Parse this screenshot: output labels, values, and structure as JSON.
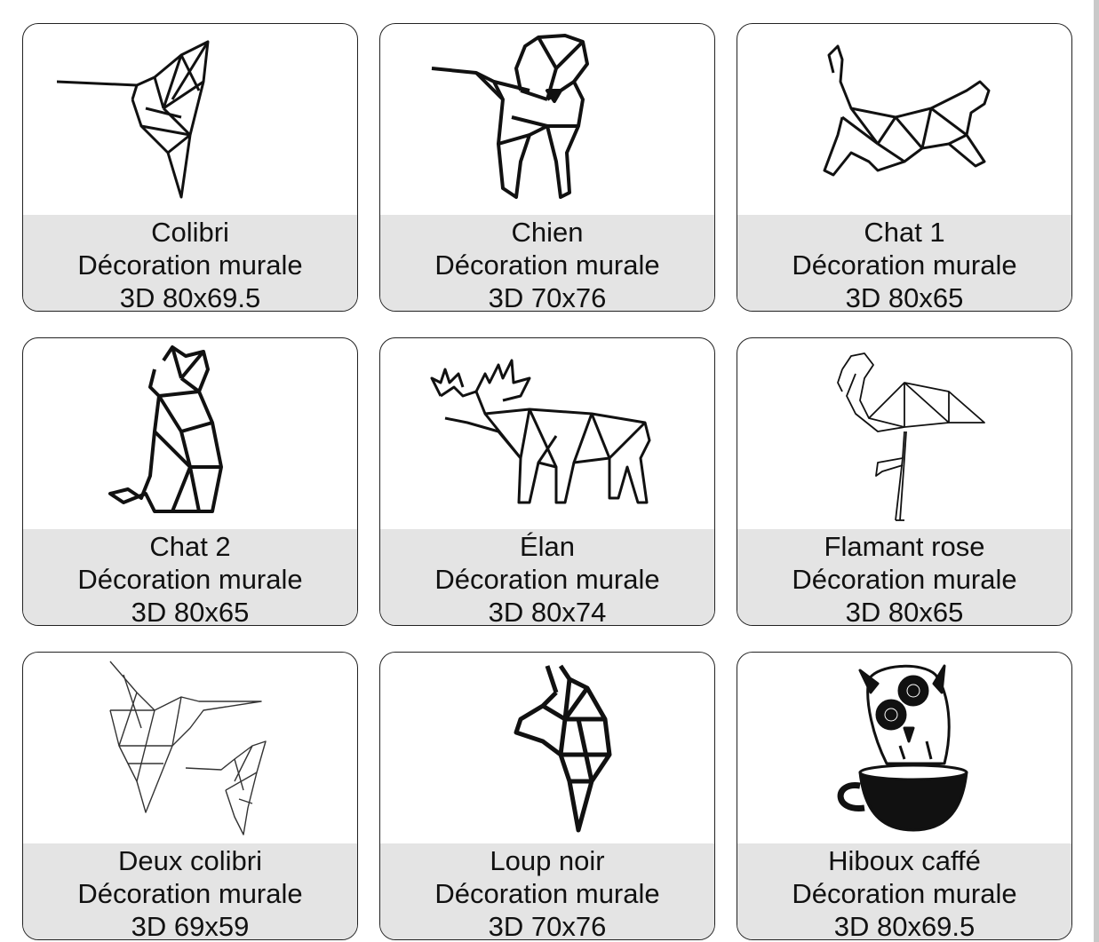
{
  "products": [
    {
      "name": "Colibri",
      "type": "Décoration murale",
      "dims": "3D 80x69.5",
      "icon": "hummingbird-icon"
    },
    {
      "name": "Chien",
      "type": "Décoration murale",
      "dims": "3D 70x76",
      "icon": "dog-icon"
    },
    {
      "name": "Chat 1",
      "type": "Décoration murale",
      "dims": "3D 80x65",
      "icon": "walking-cat-icon"
    },
    {
      "name": "Chat 2",
      "type": "Décoration murale",
      "dims": "3D 80x65",
      "icon": "sitting-cat-icon"
    },
    {
      "name": "Élan",
      "type": "Décoration murale",
      "dims": "3D 80x74",
      "icon": "moose-icon"
    },
    {
      "name": "Flamant rose",
      "type": "Décoration murale",
      "dims": "3D 80x65",
      "icon": "flamingo-icon"
    },
    {
      "name": "Deux colibri",
      "type": "Décoration murale",
      "dims": "3D 69x59",
      "icon": "two-hummingbirds-icon"
    },
    {
      "name": "Loup noir",
      "type": "Décoration murale",
      "dims": "3D 70x76",
      "icon": "wolf-icon"
    },
    {
      "name": "Hiboux caffé",
      "type": "Décoration murale",
      "dims": "3D 80x69.5",
      "icon": "owl-coffee-icon"
    }
  ]
}
